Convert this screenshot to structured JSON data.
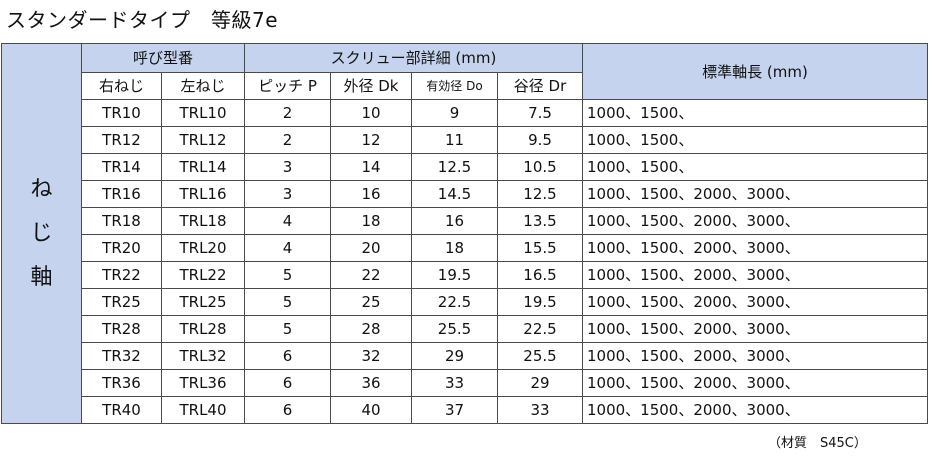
{
  "title": "スタンダードタイプ　等級7e",
  "side_label": [
    "ね",
    "じ",
    "軸"
  ],
  "header": {
    "model_group": "呼び型番",
    "screw_group": "スクリュー部詳細 (mm)",
    "length_group": "標準軸長 (mm)",
    "columns": [
      "右ねじ",
      "左ねじ",
      "ピッチ P",
      "外径 Dk",
      "有効径 Do",
      "谷径 Dr"
    ]
  },
  "rows": [
    {
      "right": "TR10",
      "left": "TRL10",
      "pitch": "2",
      "outer": "10",
      "effective": "9",
      "root": "7.5",
      "lengths": "1000、1500、"
    },
    {
      "right": "TR12",
      "left": "TRL12",
      "pitch": "2",
      "outer": "12",
      "effective": "11",
      "root": "9.5",
      "lengths": "1000、1500、"
    },
    {
      "right": "TR14",
      "left": "TRL14",
      "pitch": "3",
      "outer": "14",
      "effective": "12.5",
      "root": "10.5",
      "lengths": "1000、1500、"
    },
    {
      "right": "TR16",
      "left": "TRL16",
      "pitch": "3",
      "outer": "16",
      "effective": "14.5",
      "root": "12.5",
      "lengths": "1000、1500、2000、3000、"
    },
    {
      "right": "TR18",
      "left": "TRL18",
      "pitch": "4",
      "outer": "18",
      "effective": "16",
      "root": "13.5",
      "lengths": "1000、1500、2000、3000、"
    },
    {
      "right": "TR20",
      "left": "TRL20",
      "pitch": "4",
      "outer": "20",
      "effective": "18",
      "root": "15.5",
      "lengths": "1000、1500、2000、3000、"
    },
    {
      "right": "TR22",
      "left": "TRL22",
      "pitch": "5",
      "outer": "22",
      "effective": "19.5",
      "root": "16.5",
      "lengths": "1000、1500、2000、3000、"
    },
    {
      "right": "TR25",
      "left": "TRL25",
      "pitch": "5",
      "outer": "25",
      "effective": "22.5",
      "root": "19.5",
      "lengths": "1000、1500、2000、3000、"
    },
    {
      "right": "TR28",
      "left": "TRL28",
      "pitch": "5",
      "outer": "28",
      "effective": "25.5",
      "root": "22.5",
      "lengths": "1000、1500、2000、3000、"
    },
    {
      "right": "TR32",
      "left": "TRL32",
      "pitch": "6",
      "outer": "32",
      "effective": "29",
      "root": "25.5",
      "lengths": "1000、1500、2000、3000、"
    },
    {
      "right": "TR36",
      "left": "TRL36",
      "pitch": "6",
      "outer": "36",
      "effective": "33",
      "root": "29",
      "lengths": "1000、1500、2000、3000、"
    },
    {
      "right": "TR40",
      "left": "TRL40",
      "pitch": "6",
      "outer": "40",
      "effective": "37",
      "root": "33",
      "lengths": "1000、1500、2000、3000、"
    }
  ],
  "note": "（材質　S45C）"
}
